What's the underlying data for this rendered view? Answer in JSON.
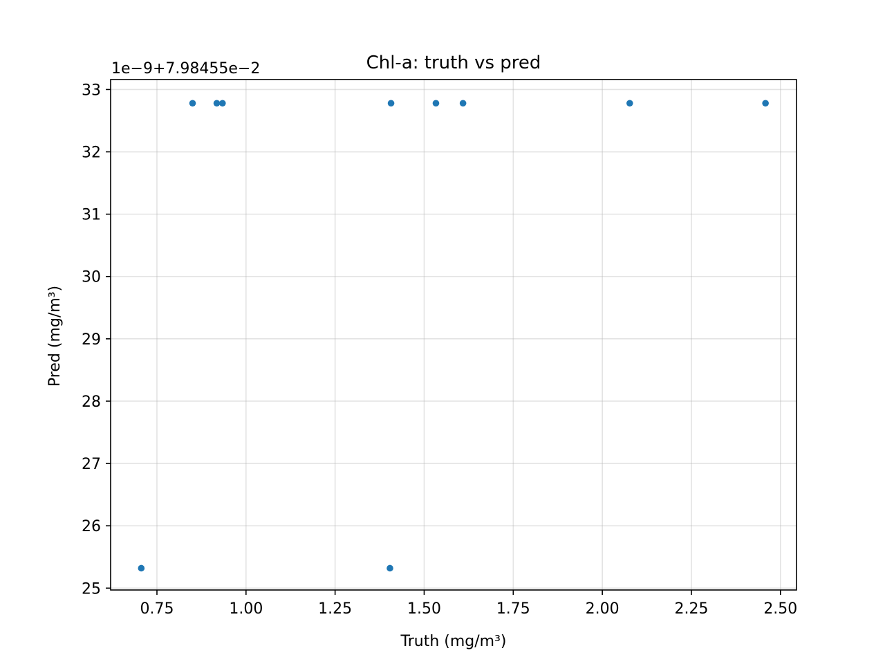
{
  "chart_data": {
    "type": "scatter",
    "title": "Chl-a: truth vs pred",
    "xlabel": "Truth (mg/m³)",
    "ylabel": "Pred (mg/m³)",
    "y_offset_label": "1e−9+7.98455e−2",
    "xlim": [
      0.62,
      2.545
    ],
    "ylim": [
      24.97,
      33.16
    ],
    "x_ticks": [
      0.75,
      1.0,
      1.25,
      1.5,
      1.75,
      2.0,
      2.25,
      2.5
    ],
    "x_tick_labels": [
      "0.75",
      "1.00",
      "1.25",
      "1.50",
      "1.75",
      "2.00",
      "2.25",
      "2.50"
    ],
    "y_ticks": [
      25,
      26,
      27,
      28,
      29,
      30,
      31,
      32,
      33
    ],
    "y_tick_labels": [
      "25",
      "26",
      "27",
      "28",
      "29",
      "30",
      "31",
      "32",
      "33"
    ],
    "grid": true,
    "series": [
      {
        "color": "#1f77b4",
        "points": [
          {
            "x": 0.706,
            "y": 25.32
          },
          {
            "x": 0.85,
            "y": 32.78
          },
          {
            "x": 0.918,
            "y": 32.78
          },
          {
            "x": 0.934,
            "y": 32.78
          },
          {
            "x": 1.404,
            "y": 25.32
          },
          {
            "x": 1.407,
            "y": 32.78
          },
          {
            "x": 1.533,
            "y": 32.78
          },
          {
            "x": 1.609,
            "y": 32.78
          },
          {
            "x": 2.077,
            "y": 32.78
          },
          {
            "x": 2.458,
            "y": 32.78
          }
        ]
      }
    ]
  }
}
